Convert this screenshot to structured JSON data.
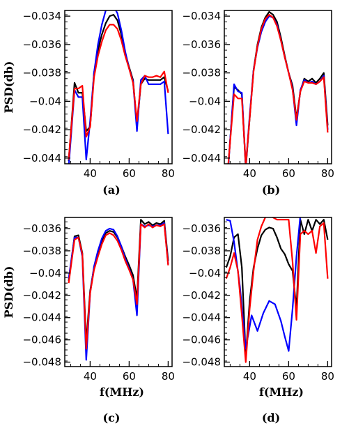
{
  "chart_data": [
    {
      "id": "a",
      "type": "line",
      "panel_label": "(a)",
      "title": "",
      "xlabel": "",
      "ylabel": "PSD(db)",
      "xlim": [
        27,
        82
      ],
      "ylim": [
        -0.0444,
        -0.0336
      ],
      "xticks": [
        40,
        60,
        80
      ],
      "yticks": [
        -0.034,
        -0.036,
        -0.038,
        -0.04,
        -0.042,
        -0.044
      ],
      "ytick_labels": [
        "−0.034",
        "−0.036",
        "−0.038",
        "−0.04",
        "−0.042",
        "−0.044"
      ],
      "series": [
        {
          "color": "#000000",
          "x": [
            29,
            32,
            34,
            36,
            38,
            40,
            42,
            44,
            46,
            48,
            50,
            52,
            54,
            56,
            58,
            60,
            62,
            64,
            66,
            68,
            70,
            72,
            74,
            76,
            78,
            80
          ],
          "y": [
            -0.0442,
            -0.0387,
            -0.0394,
            -0.0394,
            -0.0421,
            -0.0418,
            -0.038,
            -0.0364,
            -0.0353,
            -0.0345,
            -0.034,
            -0.0339,
            -0.0343,
            -0.0353,
            -0.0366,
            -0.0376,
            -0.0385,
            -0.0417,
            -0.0388,
            -0.0384,
            -0.0385,
            -0.0385,
            -0.0385,
            -0.0385,
            -0.0383,
            -0.0393
          ]
        },
        {
          "color": "#0000ff",
          "x": [
            29,
            32,
            34,
            36,
            38,
            40,
            42,
            44,
            46,
            48,
            50,
            52,
            54,
            56,
            58,
            60,
            62,
            64,
            66,
            68,
            70,
            72,
            74,
            76,
            78,
            80
          ],
          "y": [
            -0.0446,
            -0.0392,
            -0.0397,
            -0.0397,
            -0.0441,
            -0.0414,
            -0.038,
            -0.036,
            -0.0346,
            -0.0336,
            -0.0333,
            -0.0333,
            -0.0338,
            -0.035,
            -0.0365,
            -0.0377,
            -0.0386,
            -0.0421,
            -0.0385,
            -0.0382,
            -0.0388,
            -0.0388,
            -0.0388,
            -0.0388,
            -0.0386,
            -0.0423
          ]
        },
        {
          "color": "#ff0000",
          "x": [
            29,
            32,
            34,
            36,
            38,
            40,
            42,
            44,
            46,
            48,
            50,
            52,
            54,
            56,
            58,
            60,
            62,
            64,
            66,
            68,
            70,
            72,
            74,
            76,
            78,
            80
          ],
          "y": [
            -0.0441,
            -0.0391,
            -0.0391,
            -0.0389,
            -0.0425,
            -0.0418,
            -0.0383,
            -0.0368,
            -0.0358,
            -0.035,
            -0.0346,
            -0.0346,
            -0.0349,
            -0.0357,
            -0.0368,
            -0.0377,
            -0.0387,
            -0.0414,
            -0.0388,
            -0.0382,
            -0.0383,
            -0.0383,
            -0.0382,
            -0.0383,
            -0.0379,
            -0.0394
          ]
        }
      ]
    },
    {
      "id": "b",
      "type": "line",
      "panel_label": "(b)",
      "title": "",
      "xlabel": "",
      "ylabel": "",
      "xlim": [
        27,
        82
      ],
      "ylim": [
        -0.0444,
        -0.0336
      ],
      "xticks": [
        40,
        60,
        80
      ],
      "yticks": [
        -0.034,
        -0.036,
        -0.038,
        -0.04,
        -0.042,
        -0.044
      ],
      "ytick_labels": [
        "−0.034",
        "−0.036",
        "−0.038",
        "−0.04",
        "−0.042",
        "−0.044"
      ],
      "series": [
        {
          "color": "#000000",
          "x": [
            29,
            32,
            34,
            36,
            38,
            40,
            42,
            44,
            46,
            48,
            50,
            52,
            54,
            56,
            58,
            60,
            62,
            64,
            66,
            68,
            70,
            72,
            74,
            76,
            78,
            80
          ],
          "y": [
            -0.0446,
            -0.039,
            -0.0392,
            -0.0395,
            -0.0447,
            -0.0412,
            -0.0378,
            -0.036,
            -0.0348,
            -0.0341,
            -0.0337,
            -0.0339,
            -0.0344,
            -0.0355,
            -0.0368,
            -0.038,
            -0.0389,
            -0.0412,
            -0.0393,
            -0.0384,
            -0.0386,
            -0.0384,
            -0.0387,
            -0.0384,
            -0.038,
            -0.0417
          ]
        },
        {
          "color": "#0000ff",
          "x": [
            29,
            32,
            34,
            36,
            38,
            40,
            42,
            44,
            46,
            48,
            50,
            52,
            54,
            56,
            58,
            60,
            62,
            64,
            66,
            68,
            70,
            72,
            74,
            76,
            78,
            80
          ],
          "y": [
            -0.0447,
            -0.0388,
            -0.0393,
            -0.0394,
            -0.0446,
            -0.041,
            -0.0378,
            -0.0362,
            -0.0351,
            -0.0344,
            -0.034,
            -0.0341,
            -0.0346,
            -0.0357,
            -0.0369,
            -0.038,
            -0.0391,
            -0.0417,
            -0.0392,
            -0.0385,
            -0.0387,
            -0.0386,
            -0.0388,
            -0.0386,
            -0.0382,
            -0.042
          ]
        },
        {
          "color": "#ff0000",
          "x": [
            29,
            32,
            34,
            36,
            38,
            40,
            42,
            44,
            46,
            48,
            50,
            52,
            54,
            56,
            58,
            60,
            62,
            64,
            66,
            68,
            70,
            72,
            74,
            76,
            78,
            80
          ],
          "y": [
            -0.0445,
            -0.0395,
            -0.0398,
            -0.0398,
            -0.0445,
            -0.0412,
            -0.0379,
            -0.0361,
            -0.0349,
            -0.0342,
            -0.0339,
            -0.0341,
            -0.0347,
            -0.0357,
            -0.0369,
            -0.038,
            -0.0392,
            -0.0413,
            -0.0393,
            -0.0386,
            -0.0387,
            -0.0387,
            -0.0388,
            -0.0386,
            -0.0383,
            -0.0422
          ]
        }
      ]
    },
    {
      "id": "c",
      "type": "line",
      "panel_label": "(c)",
      "title": "",
      "xlabel": "f(MHz)",
      "ylabel": "PSD(db)",
      "xlim": [
        27,
        82
      ],
      "ylim": [
        -0.0484,
        -0.035
      ],
      "xticks": [
        40,
        60,
        80
      ],
      "yticks": [
        -0.036,
        -0.038,
        -0.04,
        -0.042,
        -0.044,
        -0.046,
        -0.048
      ],
      "ytick_labels": [
        "−0.036",
        "−0.038",
        "−0.04",
        "−0.042",
        "−0.044",
        "−0.046",
        "−0.048"
      ],
      "series": [
        {
          "color": "#000000",
          "x": [
            29,
            32,
            34,
            36,
            38,
            40,
            42,
            44,
            46,
            48,
            50,
            52,
            54,
            56,
            58,
            60,
            62,
            64,
            66,
            68,
            70,
            72,
            74,
            76,
            78,
            80
          ],
          "y": [
            -0.0407,
            -0.0367,
            -0.0366,
            -0.0382,
            -0.0462,
            -0.0416,
            -0.0395,
            -0.0382,
            -0.0371,
            -0.0364,
            -0.0362,
            -0.0363,
            -0.0368,
            -0.0376,
            -0.0385,
            -0.0393,
            -0.0402,
            -0.0423,
            -0.0352,
            -0.0356,
            -0.0354,
            -0.0357,
            -0.0355,
            -0.0356,
            -0.0353,
            -0.0389
          ]
        },
        {
          "color": "#0000ff",
          "x": [
            29,
            32,
            34,
            36,
            38,
            40,
            42,
            44,
            46,
            48,
            50,
            52,
            54,
            56,
            58,
            60,
            62,
            64,
            66,
            68,
            70,
            72,
            74,
            76,
            78,
            80
          ],
          "y": [
            -0.0405,
            -0.0368,
            -0.0368,
            -0.0385,
            -0.0478,
            -0.0418,
            -0.0394,
            -0.038,
            -0.0369,
            -0.0362,
            -0.036,
            -0.0361,
            -0.0367,
            -0.0376,
            -0.0387,
            -0.0396,
            -0.0406,
            -0.0438,
            -0.0356,
            -0.0358,
            -0.0357,
            -0.0358,
            -0.0357,
            -0.0357,
            -0.0355,
            -0.0392
          ]
        },
        {
          "color": "#ff0000",
          "x": [
            29,
            32,
            34,
            36,
            38,
            40,
            42,
            44,
            46,
            48,
            50,
            52,
            54,
            56,
            58,
            60,
            62,
            64,
            66,
            68,
            70,
            72,
            74,
            76,
            78,
            80
          ],
          "y": [
            -0.0409,
            -0.037,
            -0.0368,
            -0.0383,
            -0.0468,
            -0.0418,
            -0.0397,
            -0.0385,
            -0.0374,
            -0.0366,
            -0.0364,
            -0.0366,
            -0.0371,
            -0.0379,
            -0.0389,
            -0.0397,
            -0.0406,
            -0.0428,
            -0.0356,
            -0.0359,
            -0.0356,
            -0.0359,
            -0.0357,
            -0.0358,
            -0.0356,
            -0.0393
          ]
        }
      ]
    },
    {
      "id": "d",
      "type": "line",
      "panel_label": "(d)",
      "title": "",
      "xlabel": "f(MHz)",
      "ylabel": "",
      "xlim": [
        27,
        82
      ],
      "ylim": [
        -0.0484,
        -0.035
      ],
      "xticks": [
        40,
        60,
        80
      ],
      "yticks": [
        -0.036,
        -0.038,
        -0.04,
        -0.042,
        -0.044,
        -0.046,
        -0.048
      ],
      "ytick_labels": [
        "−0.036",
        "−0.038",
        "−0.04",
        "−0.042",
        "−0.044",
        "−0.046",
        "−0.048"
      ],
      "series": [
        {
          "color": "#000000",
          "x": [
            28,
            30,
            32,
            34,
            36,
            38,
            40,
            42,
            44,
            46,
            48,
            50,
            52,
            54,
            56,
            58,
            60,
            62,
            64,
            66,
            68,
            70,
            72,
            74,
            76,
            78,
            80
          ],
          "y": [
            -0.0395,
            -0.0385,
            -0.0368,
            -0.0365,
            -0.0395,
            -0.0475,
            -0.0425,
            -0.0395,
            -0.0378,
            -0.0366,
            -0.0361,
            -0.0359,
            -0.036,
            -0.0368,
            -0.0378,
            -0.0383,
            -0.0392,
            -0.0398,
            -0.0432,
            -0.0352,
            -0.0365,
            -0.0352,
            -0.0362,
            -0.0352,
            -0.0356,
            -0.0352,
            -0.037
          ]
        },
        {
          "color": "#0000ff",
          "x": [
            28,
            30,
            32,
            35,
            38,
            41,
            44,
            47,
            50,
            53,
            56,
            58,
            60,
            62,
            64,
            66
          ],
          "y": [
            -0.0352,
            -0.0353,
            -0.0372,
            -0.0412,
            -0.0468,
            -0.0438,
            -0.0452,
            -0.0436,
            -0.0425,
            -0.0428,
            -0.0443,
            -0.0457,
            -0.047,
            -0.0432,
            -0.0385,
            -0.0348
          ]
        },
        {
          "color": "#ff0000",
          "x": [
            28,
            30,
            32,
            34,
            36,
            38,
            40,
            42,
            44,
            46,
            48,
            50,
            52,
            54,
            56,
            58,
            60,
            62,
            64,
            66,
            68,
            70,
            72,
            74,
            76,
            78,
            80
          ],
          "y": [
            -0.0405,
            -0.0395,
            -0.0382,
            -0.0398,
            -0.0438,
            -0.048,
            -0.0432,
            -0.0398,
            -0.037,
            -0.0358,
            -0.035,
            -0.0348,
            -0.035,
            -0.0352,
            -0.0352,
            -0.0352,
            -0.0352,
            -0.039,
            -0.0442,
            -0.0365,
            -0.0362,
            -0.0365,
            -0.0362,
            -0.0382,
            -0.0358,
            -0.0355,
            -0.0405
          ]
        }
      ]
    }
  ]
}
